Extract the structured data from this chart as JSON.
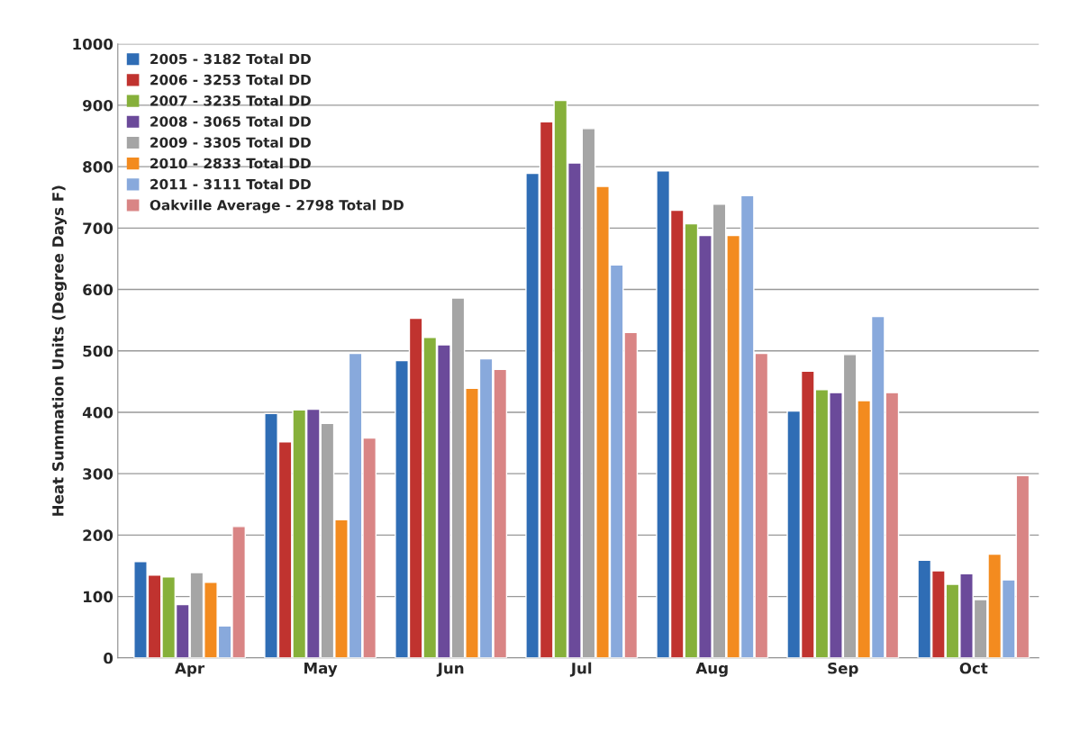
{
  "chart_data": {
    "type": "bar",
    "ylabel": "Heat Summation Units (Degree Days F)",
    "categories": [
      "Apr",
      "May",
      "Jun",
      "Jul",
      "Aug",
      "Sep",
      "Oct"
    ],
    "series": [
      {
        "name": "2005 - 3182 Total DD",
        "color": "#2f6db5",
        "values": [
          157,
          398,
          484,
          789,
          793,
          402,
          159
        ]
      },
      {
        "name": "2006 - 3253 Total DD",
        "color": "#c0332f",
        "values": [
          135,
          352,
          553,
          873,
          729,
          467,
          142
        ]
      },
      {
        "name": "2007 - 3235 Total DD",
        "color": "#86b03a",
        "values": [
          132,
          404,
          522,
          908,
          707,
          437,
          120
        ]
      },
      {
        "name": "2008 - 3065 Total DD",
        "color": "#6b4a9a",
        "values": [
          87,
          405,
          510,
          806,
          688,
          432,
          137
        ]
      },
      {
        "name": "2009 - 3305 Total DD",
        "color": "#a5a5a5",
        "values": [
          139,
          382,
          586,
          862,
          739,
          494,
          95
        ]
      },
      {
        "name": "2010 - 2833 Total DD",
        "color": "#f38b1f",
        "values": [
          123,
          225,
          439,
          768,
          688,
          419,
          169
        ]
      },
      {
        "name": "2011 - 3111 Total DD",
        "color": "#88a9dc",
        "values": [
          52,
          496,
          487,
          640,
          753,
          556,
          127
        ]
      },
      {
        "name": "Oakville Average - 2798 Total DD",
        "color": "#d98585",
        "values": [
          214,
          358,
          470,
          530,
          496,
          432,
          297
        ]
      }
    ],
    "ylim": [
      0,
      1000
    ],
    "yticks": [
      0,
      100,
      200,
      300,
      400,
      500,
      600,
      700,
      800,
      900,
      1000
    ],
    "grid": "y",
    "legend": "top left"
  }
}
